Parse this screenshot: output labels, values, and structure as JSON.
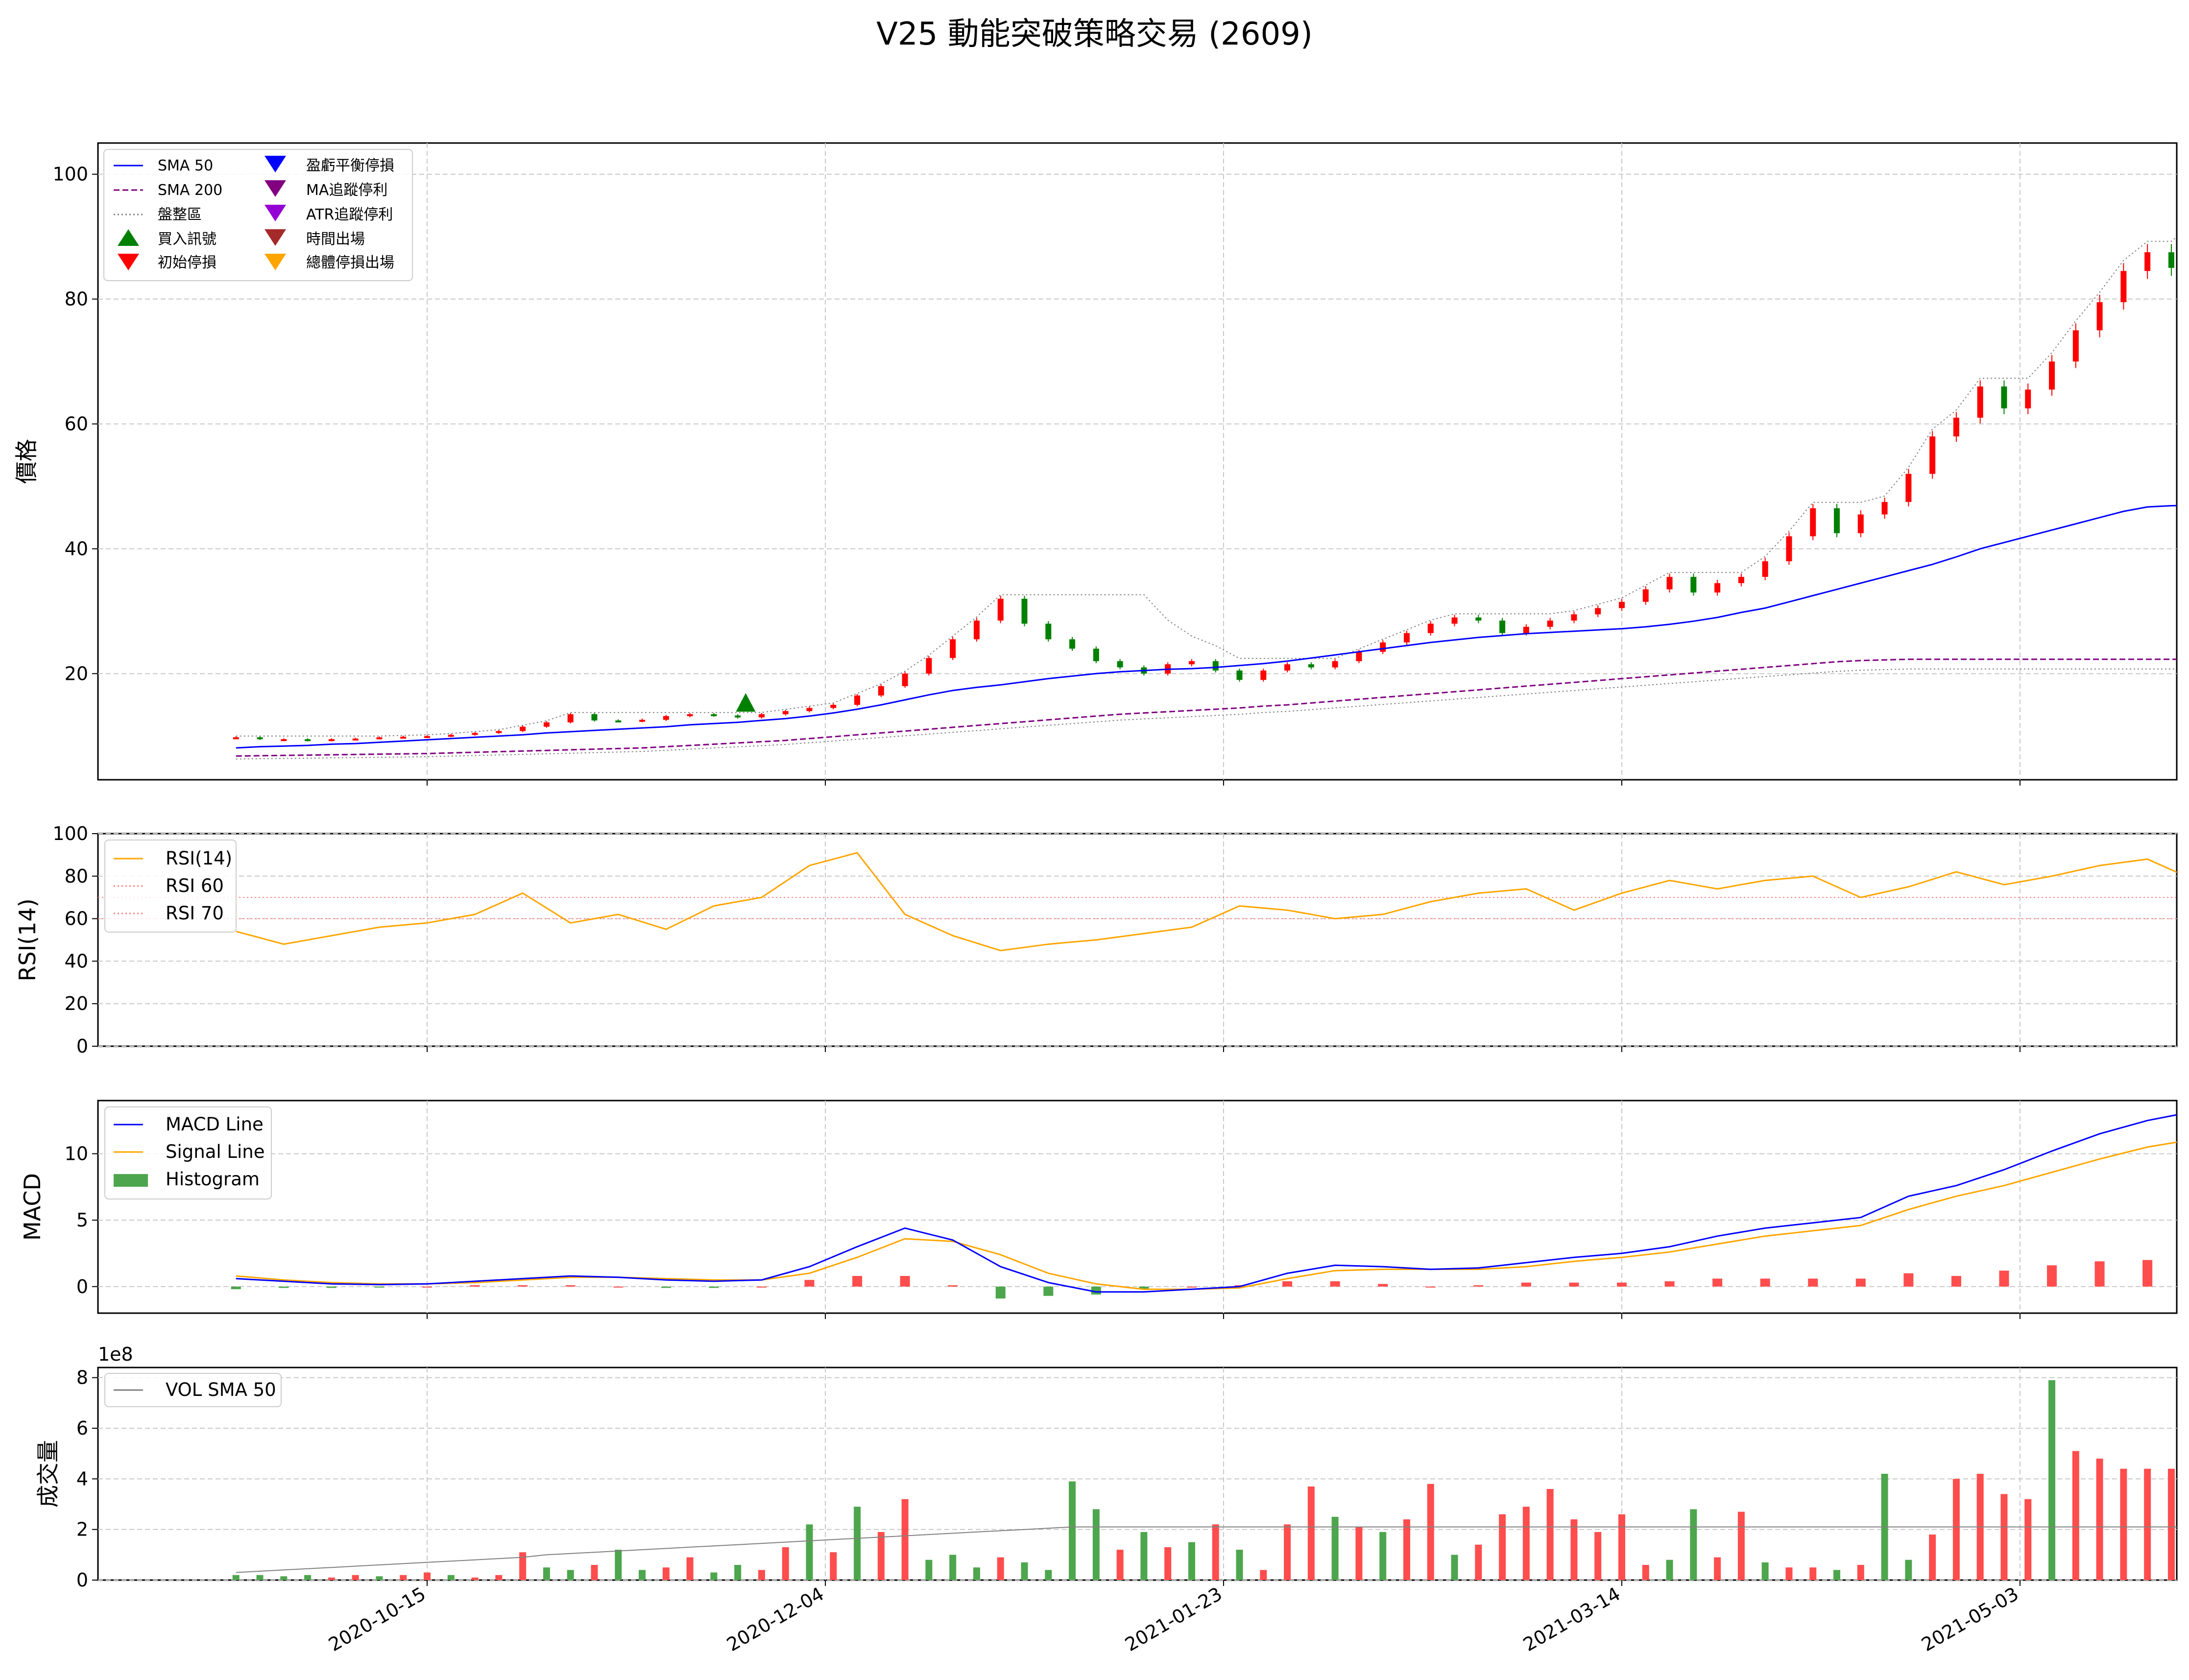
{
  "title": "V25 動能突破策略交易 (2609)",
  "colors": {
    "sma50": "#0000ff",
    "sma200": "#800080",
    "consolidation": "#808080",
    "up": "#ff0000",
    "down": "#008000",
    "rsi": "#ffa500",
    "rsi_ref": "#ff8080",
    "macd": "#0000ff",
    "signal": "#ffa500",
    "hist_pos": "#ff4d4d",
    "hist_neg": "#4da64d",
    "vol_up": "#ff4d4d",
    "vol_down": "#4da64d",
    "vol_sma": "#808080",
    "buy": "#008000",
    "stop_init": "#ff0000",
    "stop_be": "#0000ff",
    "stop_ma": "#800080",
    "stop_atr": "#9400d3",
    "exit_time": "#a52a2a",
    "exit_total": "#ffa500"
  },
  "x_axis": {
    "tick_labels": [
      "2020-10-15",
      "2020-12-04",
      "2021-01-23",
      "2021-03-14",
      "2021-05-03"
    ]
  },
  "chart_data": [
    {
      "type": "line",
      "panel": "price",
      "ylabel": "價格",
      "ylim": [
        3,
        105
      ],
      "yticks": [
        "20",
        "40",
        "60",
        "80",
        "100"
      ],
      "legend": {
        "placement": "upper-left",
        "col1": [
          "SMA 50",
          "SMA 200",
          "盤整區",
          "買入訊號",
          "初始停損"
        ],
        "col2": [
          "盈虧平衡停損",
          "MA追蹤停利",
          "ATR追蹤停利",
          "時間出場",
          "總體停損出場"
        ]
      },
      "x_days": [
        -24,
        -21,
        -18,
        -15,
        -12,
        -9,
        -6,
        -3,
        0,
        3,
        6,
        9,
        12,
        15,
        18,
        21,
        24,
        27,
        30,
        33,
        36,
        39,
        42,
        45,
        48,
        51,
        54,
        57,
        60,
        63,
        66,
        69,
        72,
        75,
        78,
        81,
        84,
        87,
        90,
        93,
        96,
        99,
        102,
        105,
        108,
        111,
        114,
        117,
        120,
        123,
        126,
        129,
        132,
        135,
        138,
        141,
        144,
        147,
        150,
        153,
        156,
        159,
        162,
        165,
        168,
        171,
        174,
        177,
        180,
        183,
        186,
        189,
        192,
        195,
        198,
        201,
        204,
        207,
        210,
        213,
        216,
        219,
        222,
        225,
        228,
        229
      ],
      "close": [
        9.8,
        9.5,
        9.5,
        9.3,
        9.5,
        9.6,
        9.8,
        9.9,
        10.0,
        10.2,
        10.5,
        10.8,
        11.5,
        12.2,
        13.5,
        12.5,
        12.4,
        12.6,
        13.2,
        13.5,
        13.3,
        13.0,
        13.5,
        14.0,
        14.5,
        15.0,
        16.5,
        18.0,
        20.0,
        22.5,
        25.5,
        28.5,
        32.0,
        28.0,
        25.5,
        24.0,
        22.0,
        21.0,
        20.0,
        21.5,
        22.0,
        20.5,
        19.0,
        20.5,
        21.5,
        21.0,
        22.0,
        23.5,
        25.0,
        26.5,
        28.0,
        29.0,
        28.5,
        26.5,
        27.5,
        28.5,
        29.5,
        30.5,
        31.5,
        33.5,
        35.5,
        33.0,
        34.5,
        35.5,
        38.0,
        42.0,
        46.5,
        42.5,
        45.5,
        47.5,
        52.0,
        58.0,
        61.0,
        66.0,
        62.5,
        65.5,
        70.0,
        75.0,
        79.5,
        84.5,
        87.5,
        85.0,
        90.5,
        92.0,
        92.0,
        92.0
      ],
      "sma50": [
        8.1,
        8.3,
        8.4,
        8.5,
        8.7,
        8.8,
        9.0,
        9.2,
        9.4,
        9.6,
        9.8,
        10.0,
        10.2,
        10.5,
        10.7,
        10.9,
        11.1,
        11.3,
        11.5,
        11.8,
        12.0,
        12.2,
        12.5,
        12.8,
        13.2,
        13.7,
        14.3,
        15.0,
        15.8,
        16.6,
        17.3,
        17.8,
        18.2,
        18.7,
        19.2,
        19.6,
        20.0,
        20.3,
        20.5,
        20.7,
        20.8,
        21.0,
        21.3,
        21.6,
        22.0,
        22.5,
        23.0,
        23.5,
        24.0,
        24.5,
        25.0,
        25.4,
        25.8,
        26.1,
        26.4,
        26.6,
        26.8,
        27.0,
        27.2,
        27.5,
        27.9,
        28.4,
        29.0,
        29.8,
        30.5,
        31.5,
        32.5,
        33.5,
        34.5,
        35.5,
        36.5,
        37.5,
        38.7,
        40.0,
        41.0,
        42.0,
        43.0,
        44.0,
        45.0,
        46.0,
        46.7,
        46.9,
        47.0,
        47.0,
        47.0,
        47.0
      ],
      "sma200": [
        6.8,
        6.85,
        6.9,
        6.95,
        7.0,
        7.05,
        7.1,
        7.15,
        7.2,
        7.3,
        7.4,
        7.5,
        7.6,
        7.7,
        7.8,
        7.9,
        8.0,
        8.1,
        8.3,
        8.5,
        8.7,
        8.9,
        9.1,
        9.3,
        9.6,
        9.9,
        10.2,
        10.5,
        10.8,
        11.1,
        11.4,
        11.7,
        12.0,
        12.3,
        12.6,
        12.9,
        13.2,
        13.5,
        13.7,
        13.9,
        14.1,
        14.3,
        14.5,
        14.8,
        15.0,
        15.3,
        15.6,
        15.9,
        16.2,
        16.5,
        16.8,
        17.1,
        17.4,
        17.7,
        18.0,
        18.3,
        18.6,
        18.9,
        19.2,
        19.5,
        19.8,
        20.1,
        20.4,
        20.7,
        21.0,
        21.3,
        21.6,
        21.9,
        22.1,
        22.2,
        22.3,
        22.3,
        22.3,
        22.3,
        22.3,
        22.3,
        22.3,
        22.3,
        22.3,
        22.3,
        22.3,
        22.3,
        22.3,
        22.3,
        22.3,
        22.3
      ],
      "buy_signals": [
        {
          "x": 40,
          "y": 15.0
        }
      ]
    },
    {
      "type": "line",
      "panel": "rsi",
      "ylabel": "RSI(14)",
      "ylim": [
        0,
        100
      ],
      "yticks": [
        "0",
        "20",
        "40",
        "60",
        "80",
        "100"
      ],
      "legend": {
        "placement": "upper-left",
        "entries": [
          "RSI(14)",
          "RSI 60",
          "RSI 70"
        ]
      },
      "reference_lines": [
        60,
        70
      ],
      "x_days": [
        -24,
        -18,
        -12,
        -6,
        0,
        6,
        12,
        18,
        24,
        30,
        36,
        42,
        48,
        54,
        60,
        66,
        72,
        78,
        84,
        90,
        96,
        102,
        108,
        114,
        120,
        126,
        132,
        138,
        144,
        150,
        156,
        162,
        168,
        174,
        180,
        186,
        192,
        198,
        204,
        210,
        216,
        222,
        228
      ],
      "values": [
        54,
        48,
        52,
        56,
        58,
        62,
        72,
        58,
        62,
        55,
        66,
        70,
        85,
        91,
        62,
        52,
        45,
        48,
        50,
        53,
        56,
        66,
        64,
        60,
        62,
        68,
        72,
        74,
        64,
        72,
        78,
        74,
        78,
        80,
        70,
        75,
        82,
        76,
        80,
        85,
        88,
        78,
        80
      ]
    },
    {
      "type": "line",
      "panel": "macd",
      "ylabel": "MACD",
      "ylim": [
        -2,
        14
      ],
      "yticks": [
        "0",
        "5",
        "10"
      ],
      "legend": {
        "placement": "upper-left",
        "entries": [
          "MACD Line",
          "Signal Line",
          "Histogram"
        ]
      },
      "x_days": [
        -24,
        -18,
        -12,
        -6,
        0,
        6,
        12,
        18,
        24,
        30,
        36,
        42,
        48,
        54,
        60,
        66,
        72,
        78,
        84,
        90,
        96,
        102,
        108,
        114,
        120,
        126,
        132,
        138,
        144,
        150,
        156,
        162,
        168,
        174,
        180,
        186,
        192,
        198,
        204,
        210,
        216,
        222,
        228
      ],
      "macd": [
        0.6,
        0.4,
        0.2,
        0.15,
        0.2,
        0.4,
        0.6,
        0.8,
        0.7,
        0.5,
        0.4,
        0.5,
        1.5,
        3.0,
        4.4,
        3.5,
        1.5,
        0.3,
        -0.4,
        -0.4,
        -0.2,
        0.0,
        1.0,
        1.6,
        1.5,
        1.3,
        1.4,
        1.8,
        2.2,
        2.5,
        3.0,
        3.8,
        4.4,
        4.8,
        5.2,
        6.8,
        7.6,
        8.8,
        10.2,
        11.5,
        12.5,
        13.2,
        13.8
      ],
      "signal": [
        0.8,
        0.5,
        0.3,
        0.2,
        0.2,
        0.3,
        0.5,
        0.7,
        0.7,
        0.6,
        0.5,
        0.5,
        1.0,
        2.2,
        3.6,
        3.4,
        2.4,
        1.0,
        0.2,
        -0.2,
        -0.2,
        -0.1,
        0.6,
        1.2,
        1.3,
        1.3,
        1.3,
        1.5,
        1.9,
        2.2,
        2.6,
        3.2,
        3.8,
        4.2,
        4.6,
        5.8,
        6.8,
        7.6,
        8.6,
        9.6,
        10.5,
        11.1,
        11.4
      ],
      "histogram": [
        -0.2,
        -0.1,
        -0.1,
        -0.05,
        0.0,
        0.1,
        0.1,
        0.1,
        0.0,
        -0.1,
        -0.1,
        0.0,
        0.5,
        0.8,
        0.8,
        0.1,
        -0.9,
        -0.7,
        -0.6,
        -0.2,
        0.0,
        0.1,
        0.4,
        0.4,
        0.2,
        0.0,
        0.1,
        0.3,
        0.3,
        0.3,
        0.4,
        0.6,
        0.6,
        0.6,
        0.6,
        1.0,
        0.8,
        1.2,
        1.6,
        1.9,
        2.0,
        2.1,
        2.4
      ]
    },
    {
      "type": "bar",
      "panel": "volume",
      "ylabel": "成交量",
      "offset_label": "1e8",
      "ylim": [
        0,
        8.4
      ],
      "yticks": [
        "0",
        "2",
        "4",
        "6",
        "8"
      ],
      "legend": {
        "placement": "upper-left",
        "entries": [
          "VOL SMA 50"
        ]
      },
      "x_days": [
        -24,
        -21,
        -18,
        -15,
        -12,
        -9,
        -6,
        -3,
        0,
        3,
        6,
        9,
        12,
        15,
        18,
        21,
        24,
        27,
        30,
        33,
        36,
        39,
        42,
        45,
        48,
        51,
        54,
        57,
        60,
        63,
        66,
        69,
        72,
        75,
        78,
        81,
        84,
        87,
        90,
        93,
        96,
        99,
        102,
        105,
        108,
        111,
        114,
        117,
        120,
        123,
        126,
        129,
        132,
        135,
        138,
        141,
        144,
        147,
        150,
        153,
        156,
        159,
        162,
        165,
        168,
        171,
        174,
        177,
        180,
        183,
        186,
        189,
        192,
        195,
        198,
        201,
        204,
        207,
        210,
        213,
        216,
        219,
        222,
        225,
        228,
        229
      ],
      "volumes": [
        0.2,
        0.2,
        0.15,
        0.2,
        0.1,
        0.2,
        0.15,
        0.2,
        0.3,
        0.2,
        0.1,
        0.2,
        1.1,
        0.5,
        0.4,
        0.6,
        1.2,
        0.4,
        0.5,
        0.9,
        0.3,
        0.6,
        0.4,
        1.3,
        2.2,
        1.1,
        2.9,
        1.9,
        3.2,
        0.8,
        1.0,
        0.5,
        0.9,
        0.7,
        0.4,
        3.9,
        2.8,
        1.2,
        1.9,
        1.3,
        1.5,
        2.2,
        1.2,
        0.4,
        2.2,
        3.7,
        2.5,
        2.1,
        1.9,
        2.4,
        3.8,
        1.0,
        1.4,
        2.6,
        2.9,
        3.6,
        2.4,
        1.9,
        2.6,
        0.6,
        0.8,
        2.8,
        0.9,
        2.7,
        0.7,
        0.5,
        0.5,
        0.4,
        0.6,
        4.2,
        0.8,
        1.8,
        4.0,
        4.2,
        3.4,
        3.2,
        7.9,
        5.1,
        4.8,
        4.4,
        4.4,
        4.4,
        4.4,
        4.4,
        4.4,
        4.4
      ],
      "up": [
        false,
        false,
        false,
        false,
        true,
        true,
        false,
        true,
        true,
        false,
        true,
        true,
        true,
        false,
        false,
        true,
        false,
        false,
        true,
        true,
        false,
        false,
        true,
        true,
        false,
        true,
        false,
        true,
        true,
        false,
        false,
        false,
        true,
        false,
        false,
        false,
        false,
        true,
        false,
        true,
        false,
        true,
        false,
        true,
        true,
        true,
        false,
        true,
        false,
        true,
        true,
        false,
        true,
        true,
        true,
        true,
        true,
        true,
        true,
        true,
        false,
        false,
        true,
        true,
        false,
        true,
        true,
        false,
        true,
        false,
        false,
        true,
        true,
        true,
        true,
        true,
        false,
        true,
        true,
        true,
        true,
        true,
        true,
        true,
        true,
        true
      ],
      "vol_sma": [
        0.3,
        0.35,
        0.4,
        0.45,
        0.5,
        0.55,
        0.6,
        0.65,
        0.7,
        0.75,
        0.8,
        0.85,
        0.9,
        1.0,
        1.05,
        1.1,
        1.15,
        1.2,
        1.25,
        1.3,
        1.35,
        1.4,
        1.45,
        1.5,
        1.55,
        1.6,
        1.65,
        1.7,
        1.75,
        1.8,
        1.85,
        1.9,
        1.95,
        2.0,
        2.05,
        2.1,
        2.1,
        2.1,
        2.1,
        2.1,
        2.1,
        2.1,
        2.1,
        2.1,
        2.1,
        2.1,
        2.1,
        2.1,
        2.1,
        2.1,
        2.1,
        2.1,
        2.1,
        2.1,
        2.1,
        2.1,
        2.1,
        2.1,
        2.1,
        2.1,
        2.1,
        2.1,
        2.1,
        2.1,
        2.1,
        2.1,
        2.1,
        2.1,
        2.1,
        2.1,
        2.1,
        2.1,
        2.1,
        2.1,
        2.1,
        2.1,
        2.1,
        2.1,
        2.1,
        2.1,
        2.1,
        2.1,
        2.1,
        2.1,
        2.1,
        2.1
      ]
    }
  ]
}
